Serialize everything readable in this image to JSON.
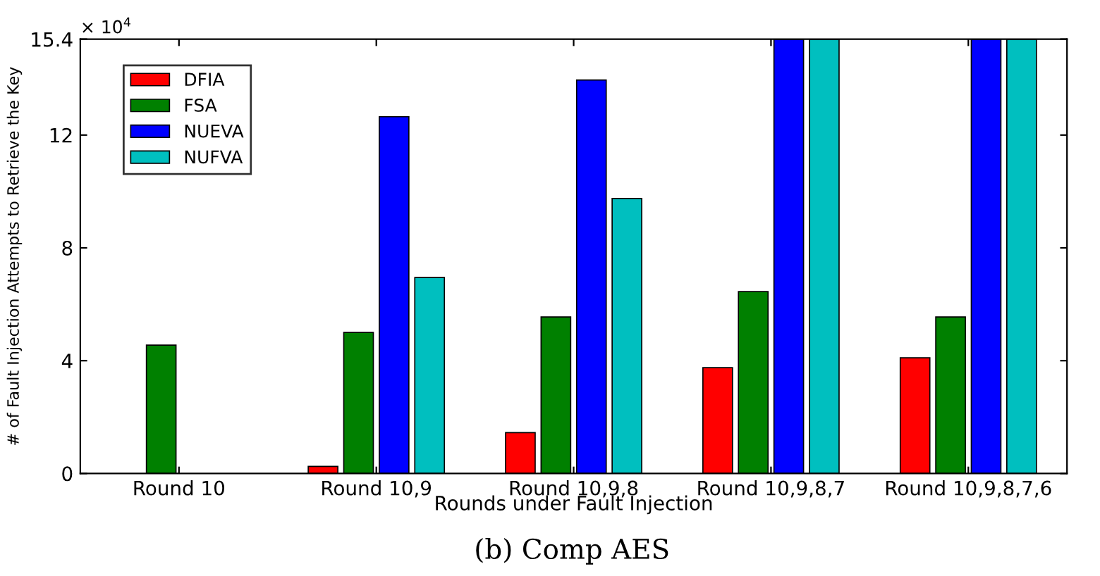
{
  "chart_data": {
    "type": "bar",
    "xlabel": "Rounds under Fault Injection",
    "ylabel": "# of Fault Injection Attempts to Retrieve the Key",
    "categories": [
      "Round 10",
      "Round 10,9",
      "Round 10,9,8",
      "Round 10,9,8,7",
      "Round 10,9,8,7,6"
    ],
    "series": [
      {
        "name": "DFIA",
        "color": "#ff0000",
        "values": [
          null,
          0.25,
          1.45,
          3.75,
          4.1
        ]
      },
      {
        "name": "FSA",
        "color": "#008000",
        "values": [
          4.55,
          5.0,
          5.55,
          6.45,
          5.55
        ]
      },
      {
        "name": "NUEVA",
        "color": "#0000ff",
        "values": [
          null,
          12.65,
          13.95,
          15.4,
          15.4
        ]
      },
      {
        "name": "NUFVA",
        "color": "#00bfbf",
        "values": [
          null,
          6.95,
          9.75,
          15.4,
          15.4
        ]
      }
    ],
    "ylim": [
      0,
      15.4
    ],
    "yticks": [
      0,
      4,
      8,
      12,
      15.4
    ],
    "grid": false,
    "legend": "top left",
    "annotations": [
      "× 10$^{4}$",
      "(b) Comp AES"
    ]
  }
}
